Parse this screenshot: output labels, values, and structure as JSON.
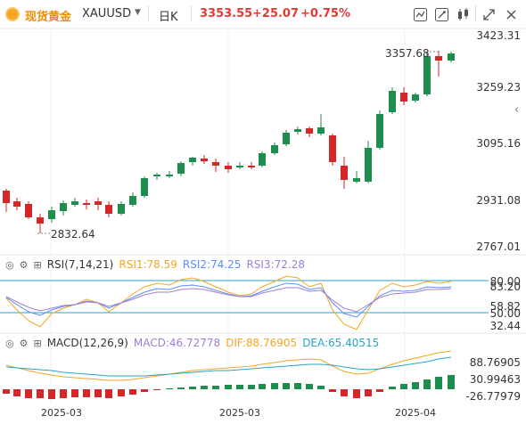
{
  "toolbar": {
    "symbol_cn": "现货黄金",
    "symbol": "XAUUSD",
    "period": "日K",
    "price": "3353.55",
    "change": "+25.07",
    "change_pct": "+0.75%",
    "icons": [
      "chart-settings-icon",
      "draw-icon",
      "candle-style-icon",
      "fullscreen-icon",
      "close-icon"
    ]
  },
  "main_chart": {
    "y_labels": [
      "3423.31",
      "3259.23",
      "3095.16",
      "2931.08",
      "2767.01"
    ],
    "high_label": "3357.68",
    "low_label": "2832.64"
  },
  "rsi": {
    "title": "RSI(7,14,21)",
    "rsi1": "RSI1:78.59",
    "rsi2": "RSI2:74.25",
    "rsi3": "RSI3:72.28",
    "y_labels": [
      "80.00",
      "83.20",
      "58.82",
      "50.00",
      "32.44"
    ],
    "colors": {
      "rsi1": "#f5a623",
      "rsi2": "#5b8ff9",
      "rsi3": "#a07fd8"
    }
  },
  "macd": {
    "title": "MACD(12,26,9)",
    "macd": "MACD:46.72778",
    "dif": "DIF:88.76905",
    "dea": "DEA:65.40515",
    "y_labels": [
      "88.76905",
      "30.99463",
      "-26.77979"
    ],
    "colors": {
      "macd": "#a07fd8",
      "dif": "#f5a623",
      "dea": "#26a6c9"
    }
  },
  "x_labels": [
    "2025-03",
    "2025-03",
    "2025-04"
  ],
  "colors": {
    "up": "#1e8e4e",
    "down": "#d62728"
  }
}
